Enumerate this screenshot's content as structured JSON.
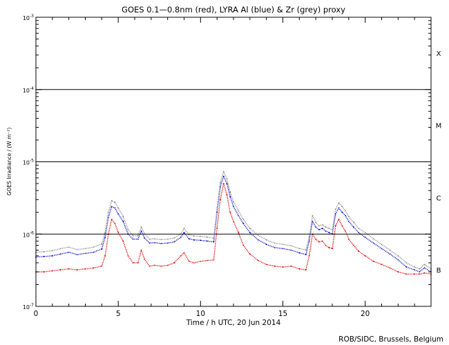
{
  "chart_data": {
    "type": "line",
    "title": "GOES 0.1—0.8nm (red), LYRA Al (blue) & Zr (grey) proxy",
    "xlabel": "Time / h UTC, 20 Jun 2014",
    "ylabel": "GOES Irradiance / (W m⁻²)",
    "xlim": [
      0,
      24
    ],
    "ylim": [
      1e-07,
      0.001
    ],
    "yscale": "log",
    "x_ticks": [
      0,
      5,
      10,
      15,
      20
    ],
    "x_tick_labels": [
      "0",
      "5",
      "10",
      "15",
      "20"
    ],
    "y_tick_labels": [
      {
        "mant": "10",
        "exp": "-7",
        "value": 1e-07
      },
      {
        "mant": "10",
        "exp": "-6",
        "value": 1e-06
      },
      {
        "mant": "10",
        "exp": "-5",
        "value": 1e-05
      },
      {
        "mant": "10",
        "exp": "-4",
        "value": 0.0001
      },
      {
        "mant": "10",
        "exp": "-3",
        "value": 0.001
      }
    ],
    "flare_class_lines": [
      1e-06,
      1e-05,
      0.0001
    ],
    "flare_classes": [
      {
        "label": "B",
        "value": 3.2e-07
      },
      {
        "label": "C",
        "value": 3.2e-06
      },
      {
        "label": "M",
        "value": 3.2e-05
      },
      {
        "label": "X",
        "value": 0.00032
      }
    ],
    "series": [
      {
        "name": "GOES 0.1—0.8nm",
        "color": "#e00000",
        "x": [
          0,
          0.5,
          1,
          1.5,
          2,
          2.5,
          3,
          3.5,
          4,
          4.2,
          4.4,
          4.6,
          4.8,
          5,
          5.3,
          5.6,
          5.9,
          6.2,
          6.4,
          6.6,
          6.9,
          7.2,
          7.6,
          8,
          8.4,
          8.8,
          9,
          9.3,
          9.6,
          10,
          10.4,
          10.8,
          11,
          11.2,
          11.4,
          11.6,
          11.8,
          12,
          12.3,
          12.6,
          13,
          13.5,
          14,
          14.5,
          15,
          15.5,
          16,
          16.4,
          16.6,
          16.8,
          17,
          17.2,
          17.4,
          17.6,
          17.8,
          18,
          18.2,
          18.4,
          18.6,
          18.8,
          19,
          19.3,
          19.6,
          20,
          20.5,
          21,
          21.5,
          22,
          22.5,
          23,
          23.3,
          23.6,
          24
        ],
        "y": [
          3e-07,
          3e-07,
          3.1e-07,
          3.2e-07,
          3.3e-07,
          3.2e-07,
          3.3e-07,
          3.4e-07,
          3.6e-07,
          5e-07,
          1e-06,
          1.6e-06,
          1.4e-06,
          1.05e-06,
          8e-07,
          5e-07,
          4e-07,
          4e-07,
          6e-07,
          4.5e-07,
          3.6e-07,
          3.7e-07,
          3.6e-07,
          3.7e-07,
          4e-07,
          5e-07,
          5.5e-07,
          4.2e-07,
          4e-07,
          4.2e-07,
          4.3e-07,
          4.4e-07,
          1.2e-06,
          3e-06,
          5e-06,
          3.5e-06,
          2e-06,
          1.5e-06,
          1.05e-06,
          7e-07,
          5.3e-07,
          4.3e-07,
          3.8e-07,
          3.6e-07,
          3.5e-07,
          3.6e-07,
          3.3e-07,
          3.2e-07,
          5e-07,
          1e-06,
          8.5e-07,
          7.8e-07,
          8e-07,
          7e-07,
          6.5e-07,
          6.3e-07,
          1.3e-06,
          1.6e-06,
          1.3e-06,
          1.1e-06,
          8.5e-07,
          7e-07,
          5.8e-07,
          5e-07,
          4.2e-07,
          3.8e-07,
          3.4e-07,
          3e-07,
          2.8e-07,
          2.8e-07,
          2.8e-07,
          2.9e-07,
          2.8e-07
        ]
      },
      {
        "name": "LYRA Al proxy",
        "color": "#0000c8",
        "x": [
          0,
          0.5,
          1,
          1.5,
          2,
          2.5,
          3,
          3.5,
          4,
          4.2,
          4.4,
          4.6,
          4.8,
          5,
          5.3,
          5.6,
          5.9,
          6.2,
          6.4,
          6.6,
          6.9,
          7.2,
          7.6,
          8,
          8.4,
          8.8,
          9,
          9.3,
          9.6,
          10,
          10.4,
          10.8,
          11,
          11.2,
          11.4,
          11.6,
          11.8,
          12,
          12.3,
          12.6,
          13,
          13.5,
          14,
          14.5,
          15,
          15.5,
          16,
          16.4,
          16.6,
          16.8,
          17,
          17.2,
          17.4,
          17.6,
          17.8,
          18,
          18.2,
          18.4,
          18.6,
          18.8,
          19,
          19.3,
          19.6,
          20,
          20.5,
          21,
          21.5,
          22,
          22.5,
          23,
          23.3,
          23.6,
          24
        ],
        "y": [
          4.8e-07,
          4.9e-07,
          5e-07,
          5.3e-07,
          5.6e-07,
          5.2e-07,
          5.4e-07,
          5.6e-07,
          6.2e-07,
          9e-07,
          1.7e-06,
          2.4e-06,
          2.3e-06,
          1.9e-06,
          1.5e-06,
          1e-06,
          8.5e-07,
          8.5e-07,
          1.1e-06,
          8.8e-07,
          7.5e-07,
          7.6e-07,
          7.4e-07,
          7.5e-07,
          7.8e-07,
          9e-07,
          1.05e-06,
          8.6e-07,
          8.3e-07,
          8.2e-07,
          8e-07,
          7.8e-07,
          2e-06,
          4.5e-06,
          6.3e-06,
          5e-06,
          3.3e-06,
          2.4e-06,
          1.8e-06,
          1.4e-06,
          1.05e-06,
          8.3e-07,
          7.2e-07,
          6.5e-07,
          6.3e-07,
          6e-07,
          5.5e-07,
          5.2e-07,
          8e-07,
          1.5e-06,
          1.25e-06,
          1.15e-06,
          1.2e-06,
          1.1e-06,
          1.05e-06,
          1e-06,
          1.9e-06,
          2.3e-06,
          2e-06,
          1.8e-06,
          1.5e-06,
          1.25e-06,
          1.05e-06,
          9e-07,
          7.5e-07,
          6.3e-07,
          5.3e-07,
          4.4e-07,
          3.5e-07,
          3.2e-07,
          3e-07,
          3.4e-07,
          3e-07
        ]
      },
      {
        "name": "LYRA Zr proxy",
        "color": "#8c8c8c",
        "x": [
          0,
          0.5,
          1,
          1.5,
          2,
          2.5,
          3,
          3.5,
          4,
          4.2,
          4.4,
          4.6,
          4.8,
          5,
          5.3,
          5.6,
          5.9,
          6.2,
          6.4,
          6.6,
          6.9,
          7.2,
          7.6,
          8,
          8.4,
          8.8,
          9,
          9.3,
          9.6,
          10,
          10.4,
          10.8,
          11,
          11.2,
          11.4,
          11.6,
          11.8,
          12,
          12.3,
          12.6,
          13,
          13.5,
          14,
          14.5,
          15,
          15.5,
          16,
          16.4,
          16.6,
          16.8,
          17,
          17.2,
          17.4,
          17.6,
          17.8,
          18,
          18.2,
          18.4,
          18.6,
          18.8,
          19,
          19.3,
          19.6,
          20,
          20.5,
          21,
          21.5,
          22,
          22.5,
          23,
          23.3,
          23.6,
          24
        ],
        "y": [
          5.6e-07,
          5.7e-07,
          5.9e-07,
          6.3e-07,
          6.6e-07,
          6.1e-07,
          6.3e-07,
          6.6e-07,
          7.3e-07,
          1.05e-06,
          2e-06,
          2.9e-06,
          2.75e-06,
          2.3e-06,
          1.75e-06,
          1.15e-06,
          9.5e-07,
          9.5e-07,
          1.25e-06,
          1e-06,
          8.5e-07,
          8.6e-07,
          8.4e-07,
          8.5e-07,
          8.8e-07,
          1e-06,
          1.2e-06,
          9.8e-07,
          9.4e-07,
          9.3e-07,
          9.1e-07,
          8.8e-07,
          2.3e-06,
          5.2e-06,
          7.3e-06,
          5.8e-06,
          3.8e-06,
          2.8e-06,
          2.1e-06,
          1.6e-06,
          1.2e-06,
          9.6e-07,
          8.3e-07,
          7.5e-07,
          7.2e-07,
          6.9e-07,
          6.3e-07,
          6e-07,
          9e-07,
          1.8e-06,
          1.45e-06,
          1.3e-06,
          1.35e-06,
          1.25e-06,
          1.2e-06,
          1.15e-06,
          2.2e-06,
          2.7e-06,
          2.4e-06,
          2.1e-06,
          1.75e-06,
          1.45e-06,
          1.2e-06,
          1.05e-06,
          8.6e-07,
          7.2e-07,
          6e-07,
          5e-07,
          4e-07,
          3.5e-07,
          3.3e-07,
          3.8e-07,
          3.3e-07
        ]
      }
    ],
    "credit": "ROB/SIDC, Brussels, Belgium"
  }
}
